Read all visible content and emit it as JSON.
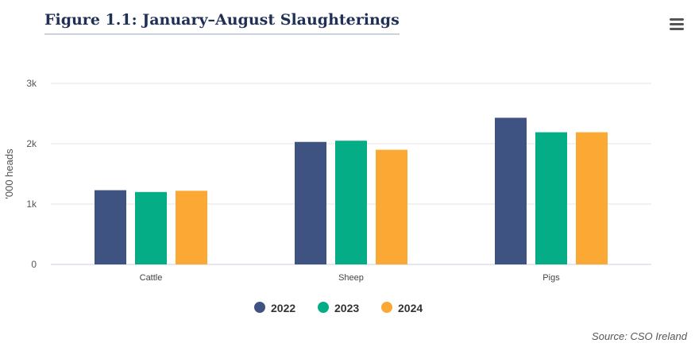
{
  "header": {
    "title": "Figure 1.1: January–August Slaughterings"
  },
  "menu": {
    "icon": "hamburger-menu-icon"
  },
  "source": "Source: CSO Ireland",
  "colors": {
    "2022": "#3e5382",
    "2023": "#04ad85",
    "2024": "#fba834"
  },
  "chart_data": {
    "type": "bar",
    "title": "Figure 1.1: January–August Slaughterings",
    "xlabel": "",
    "ylabel": "'000 heads",
    "categories": [
      "Cattle",
      "Sheep",
      "Pigs"
    ],
    "series": [
      {
        "name": "2022",
        "values": [
          1230,
          2030,
          2430
        ]
      },
      {
        "name": "2023",
        "values": [
          1200,
          2050,
          2190
        ]
      },
      {
        "name": "2024",
        "values": [
          1220,
          1900,
          2190
        ]
      }
    ],
    "ylim": [
      0,
      3000
    ],
    "yticks": [
      0,
      1000,
      2000,
      3000
    ],
    "ytick_labels": [
      "0",
      "1k",
      "2k",
      "3k"
    ],
    "grid": true,
    "legend": "bottom-center"
  }
}
